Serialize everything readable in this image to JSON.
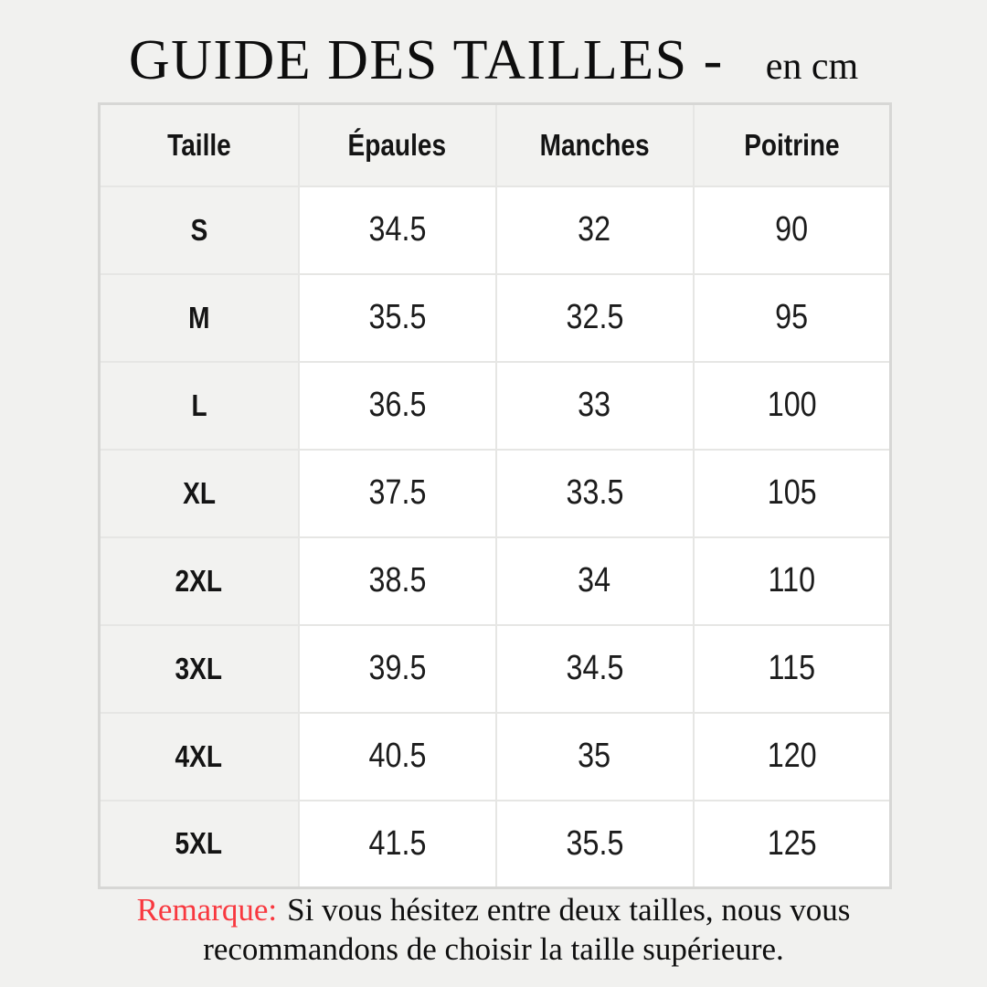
{
  "title": {
    "text": "GUIDE DES TAILLES -",
    "unit": "en cm"
  },
  "table": {
    "headers": [
      "Taille",
      "Épaules",
      "Manches",
      "Poitrine"
    ],
    "rows": [
      [
        "S",
        "34.5",
        "32",
        "90"
      ],
      [
        "M",
        "35.5",
        "32.5",
        "95"
      ],
      [
        "L",
        "36.5",
        "33",
        "100"
      ],
      [
        "XL",
        "37.5",
        "33.5",
        "105"
      ],
      [
        "2XL",
        "38.5",
        "34",
        "110"
      ],
      [
        "3XL",
        "39.5",
        "34.5",
        "115"
      ],
      [
        "4XL",
        "40.5",
        "35",
        "120"
      ],
      [
        "5XL",
        "41.5",
        "35.5",
        "125"
      ]
    ]
  },
  "note": {
    "label": "Remarque:",
    "text": "Si vous hésitez entre deux tailles, nous vous recommandons de choisir la taille supérieure."
  },
  "colors": {
    "page_background": "#f1f1ef",
    "cell_gray": "#f2f2f0",
    "outer_border": "#d7d7d5",
    "inner_border": "#e6e6e4",
    "note_label_red": "#f8383f",
    "text": "#121212"
  }
}
